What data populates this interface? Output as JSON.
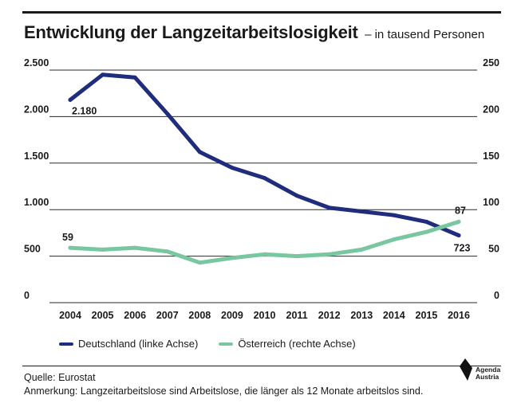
{
  "header": {
    "title": "Entwicklung der Langzeitarbeitslosigkeit",
    "subtitle": "– in tausend Personen"
  },
  "legend": {
    "series1": "Deutschland (linke Achse)",
    "series2": "Österreich (rechte Achse)"
  },
  "footer": {
    "source": "Quelle: Eurostat",
    "note": "Anmerkung: Langzeitarbeitslose sind Arbeitslose, die länger als 12 Monate arbeitslos sind."
  },
  "logo": {
    "line1": "Agenda",
    "line2": "Austria"
  },
  "colors": {
    "deutschland": "#1f2d7c",
    "oesterreich": "#79c7a0",
    "grid": "#2a2a2a"
  },
  "chart_data": {
    "type": "line",
    "title": "Entwicklung der Langzeitarbeitslosigkeit",
    "subtitle": "– in tausend Personen",
    "categories": [
      "2004",
      "2005",
      "2006",
      "2007",
      "2008",
      "2009",
      "2010",
      "2011",
      "2012",
      "2013",
      "2014",
      "2015",
      "2016"
    ],
    "left_axis": {
      "ticks": [
        0,
        500,
        1000,
        1500,
        2000,
        2500
      ],
      "tick_labels": [
        "0",
        "500",
        "1.000",
        "1.500",
        "2.000",
        "2.500"
      ],
      "ylim": [
        0,
        2500
      ]
    },
    "right_axis": {
      "ticks": [
        0,
        50,
        100,
        150,
        200,
        250
      ],
      "tick_labels": [
        "0",
        "50",
        "100",
        "150",
        "200",
        "250"
      ],
      "ylim": [
        0,
        250
      ]
    },
    "series": [
      {
        "name": "Deutschland (linke Achse)",
        "axis": "left",
        "values": [
          2180,
          2450,
          2420,
          2030,
          1620,
          1450,
          1340,
          1150,
          1020,
          980,
          940,
          870,
          723
        ]
      },
      {
        "name": "Österreich (rechte Achse)",
        "axis": "right",
        "values": [
          59,
          57,
          59,
          55,
          43,
          48,
          52,
          50,
          52,
          57,
          68,
          76,
          87
        ]
      }
    ],
    "annotations": [
      {
        "series": 0,
        "index": 0,
        "text": "2.180"
      },
      {
        "series": 0,
        "index": 12,
        "text": "723"
      },
      {
        "series": 1,
        "index": 0,
        "text": "59"
      },
      {
        "series": 1,
        "index": 12,
        "text": "87"
      }
    ],
    "grid": true,
    "legend_position": "bottom-left"
  }
}
